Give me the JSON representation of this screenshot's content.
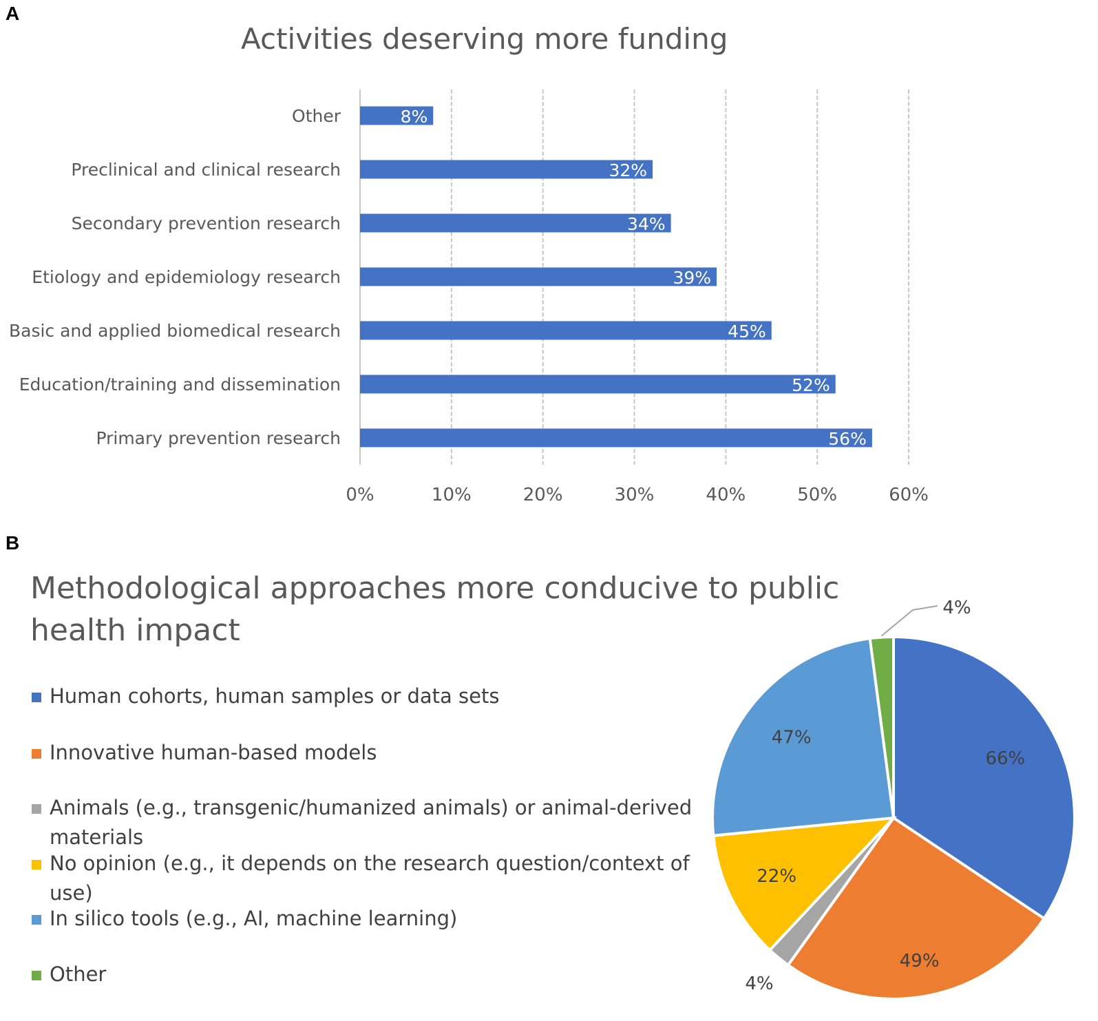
{
  "panels": {
    "a": "A",
    "b": "B"
  },
  "chart_data": [
    {
      "type": "bar",
      "orientation": "horizontal",
      "title": "Activities deserving more funding",
      "categories": [
        "Other",
        "Preclinical and clinical research",
        "Secondary prevention research",
        "Etiology and epidemiology research",
        "Basic and applied biomedical research",
        "Education/training and dissemination",
        "Primary prevention research"
      ],
      "values": [
        8,
        32,
        34,
        39,
        45,
        52,
        56
      ],
      "data_labels": [
        "8%",
        "32%",
        "34%",
        "39%",
        "45%",
        "52%",
        "56%"
      ],
      "x_ticks": [
        "0%",
        "10%",
        "20%",
        "30%",
        "40%",
        "50%",
        "60%"
      ],
      "xlim": [
        0,
        60
      ],
      "grid": "vertical dashed",
      "color": "#4472C4"
    },
    {
      "type": "pie",
      "title": "Methodological approaches more conducive to public health impact",
      "labels": [
        "Human cohorts, human samples or data sets",
        "Innovative human-based models",
        "Animals (e.g., transgenic/humanized animals) or animal-derived materials",
        "No opinion (e.g., it depends on the research question/context of use)",
        "In silico tools (e.g., AI, machine learning)",
        "Other"
      ],
      "values": [
        66,
        49,
        4,
        22,
        47,
        4
      ],
      "data_labels": [
        "66%",
        "49%",
        "4%",
        "22%",
        "47%",
        "4%"
      ],
      "colors": [
        "#4472C4",
        "#ED7D31",
        "#A5A5A5",
        "#FFC000",
        "#5B9BD5",
        "#70AD47"
      ],
      "legend_position": "left"
    }
  ]
}
